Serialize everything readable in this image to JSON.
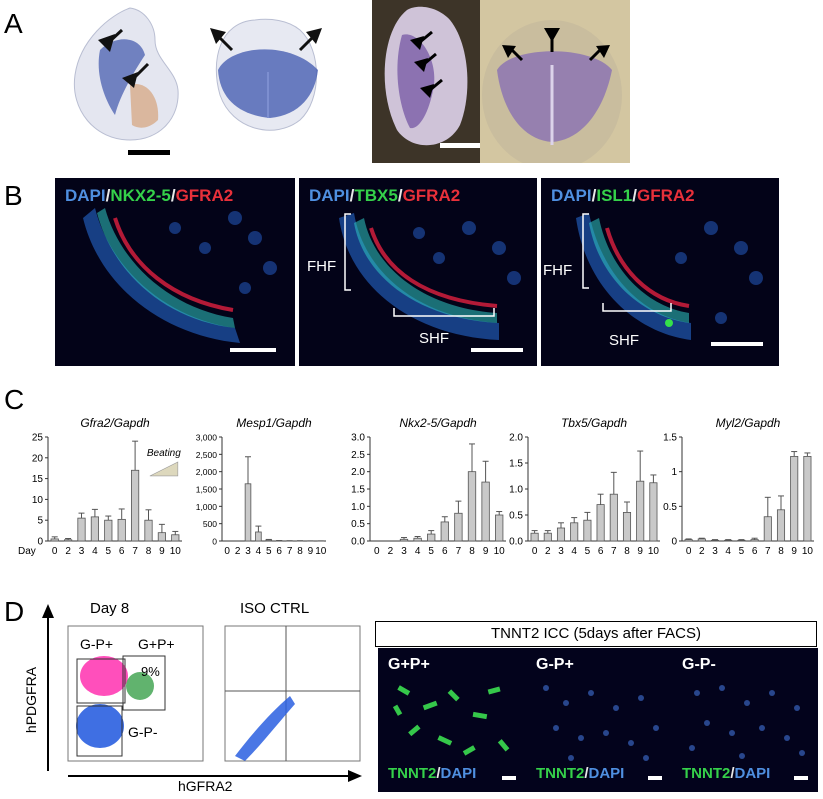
{
  "panels": {
    "a": "A",
    "b": "B",
    "c": "C",
    "d": "D"
  },
  "panel_b": {
    "images": [
      {
        "dapi": "DAPI",
        "sep1": "/",
        "marker": "NKX2-5",
        "sep2": "/",
        "gene": "GFRA2"
      },
      {
        "dapi": "DAPI",
        "sep1": "/",
        "marker": "TBX5",
        "sep2": "/",
        "gene": "GFRA2",
        "fhf": "FHF",
        "shf": "SHF"
      },
      {
        "dapi": "DAPI",
        "sep1": "/",
        "marker": "ISL1",
        "sep2": "/",
        "gene": "GFRA2",
        "fhf": "FHF",
        "shf": "SHF"
      }
    ]
  },
  "panel_c": {
    "day_label": "Day",
    "beating_label": "Beating",
    "colors": {
      "bar": "#c9c9c9",
      "edge": "#555555",
      "wedge": "#ddd8bd"
    }
  },
  "chart_data": [
    {
      "type": "bar",
      "title": "Gfra2/Gapdh",
      "categories": [
        "0",
        "2",
        "3",
        "4",
        "5",
        "6",
        "7",
        "8",
        "9",
        "10"
      ],
      "values": [
        0.5,
        0.3,
        5.5,
        5.8,
        5.0,
        5.2,
        17.0,
        5.0,
        2.0,
        1.5
      ],
      "errors": [
        0.5,
        0.3,
        1.2,
        1.8,
        1.0,
        2.5,
        7.0,
        2.5,
        2.0,
        0.8
      ],
      "ylim": [
        0,
        25
      ],
      "yticks": [
        "0",
        "5",
        "10",
        "15",
        "20",
        "25"
      ],
      "annotation": "Beating"
    },
    {
      "type": "bar",
      "title": "Mesp1/Gapdh",
      "categories": [
        "0",
        "2",
        "3",
        "4",
        "5",
        "6",
        "7",
        "8",
        "9",
        "10"
      ],
      "values": [
        0,
        0,
        1650,
        260,
        30,
        8,
        5,
        5,
        3,
        3
      ],
      "errors": [
        0,
        0,
        780,
        170,
        15,
        5,
        3,
        3,
        2,
        2
      ],
      "ylim": [
        0,
        3000
      ],
      "yticks": [
        "0",
        "500",
        "1,000",
        "1,500",
        "2,000",
        "2,500",
        "3,000"
      ]
    },
    {
      "type": "bar",
      "title": "Nkx2-5/Gapdh",
      "categories": [
        "0",
        "2",
        "3",
        "4",
        "5",
        "6",
        "7",
        "8",
        "9",
        "10"
      ],
      "values": [
        0.0,
        0.0,
        0.05,
        0.08,
        0.2,
        0.55,
        0.8,
        2.0,
        1.7,
        0.75
      ],
      "errors": [
        0.0,
        0.0,
        0.05,
        0.05,
        0.1,
        0.15,
        0.35,
        0.8,
        0.6,
        0.1
      ],
      "ylim": [
        0,
        3.0
      ],
      "yticks": [
        "0.0",
        "0.5",
        "1.0",
        "1.5",
        "2.0",
        "2.5",
        "3.0"
      ]
    },
    {
      "type": "bar",
      "title": "Tbx5/Gapdh",
      "categories": [
        "0",
        "2",
        "3",
        "4",
        "5",
        "6",
        "7",
        "8",
        "9",
        "10"
      ],
      "values": [
        0.15,
        0.15,
        0.25,
        0.35,
        0.4,
        0.7,
        0.9,
        0.55,
        1.15,
        1.12
      ],
      "errors": [
        0.05,
        0.05,
        0.1,
        0.1,
        0.15,
        0.2,
        0.42,
        0.2,
        0.58,
        0.15
      ],
      "ylim": [
        0,
        2.0
      ],
      "yticks": [
        "0.0",
        "0.5",
        "1.0",
        "1.5",
        "2.0"
      ]
    },
    {
      "type": "bar",
      "title": "Myl2/Gapdh",
      "categories": [
        "0",
        "2",
        "3",
        "4",
        "5",
        "6",
        "7",
        "8",
        "9",
        "10"
      ],
      "values": [
        0.02,
        0.03,
        0.01,
        0.01,
        0.01,
        0.02,
        0.35,
        0.45,
        1.22,
        1.22
      ],
      "errors": [
        0.01,
        0.01,
        0.01,
        0.01,
        0.01,
        0.02,
        0.28,
        0.2,
        0.07,
        0.05
      ],
      "ylim": [
        0,
        1.5
      ],
      "yticks": [
        "0",
        "0.5",
        "1",
        "1.5"
      ]
    }
  ],
  "panel_d": {
    "day8_title": "Day 8",
    "iso_title": "ISO CTRL",
    "y_axis_label": "hPDGFRA",
    "x_axis_label": "hGFRA2",
    "gate_gmp": "G-P+",
    "gate_gpp": "G+P+",
    "gate_gmm": "G-P-",
    "percent": "9%",
    "icc_header": "TNNT2 ICC  (5days after FACS)",
    "icc_images": [
      {
        "title": "G+P+",
        "stain": "TNNT2",
        "sep": "/",
        "dapi": "DAPI"
      },
      {
        "title": "G-P+",
        "stain": "TNNT2",
        "sep": "/",
        "dapi": "DAPI"
      },
      {
        "title": "G-P-",
        "stain": "TNNT2",
        "sep": "/",
        "dapi": "DAPI"
      }
    ]
  }
}
